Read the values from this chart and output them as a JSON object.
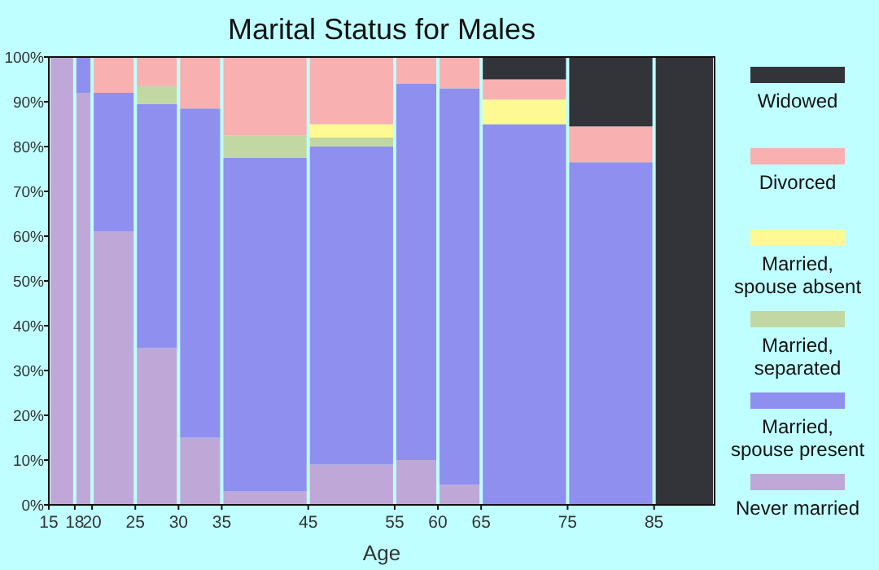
{
  "chart_data": {
    "type": "bar",
    "stacked": true,
    "title": "Marital Status for Males",
    "xlabel": "Age",
    "x": [
      16.5,
      19,
      22.5,
      27.5,
      32.5,
      40,
      50,
      57.5,
      62.5,
      70,
      80,
      88.5
    ],
    "xlim": [
      15,
      92
    ],
    "xticks": [
      15,
      18,
      20,
      25,
      30,
      35,
      45,
      55,
      60,
      65,
      75,
      85
    ],
    "ylim": [
      0,
      100
    ],
    "yticks": [
      {
        "value": 0,
        "label": "0%"
      },
      {
        "value": 10,
        "label": "10%"
      },
      {
        "value": 20,
        "label": "20%"
      },
      {
        "value": 30,
        "label": "30%"
      },
      {
        "value": 40,
        "label": "40%"
      },
      {
        "value": 50,
        "label": "50%"
      },
      {
        "value": 60,
        "label": "60%"
      },
      {
        "value": 70,
        "label": "70%"
      },
      {
        "value": 80,
        "label": "80%"
      },
      {
        "value": 90,
        "label": "90%"
      },
      {
        "value": 100,
        "label": "100%"
      }
    ],
    "legend": "right",
    "series": [
      {
        "name": "Never married",
        "color": "#bfa8d8",
        "values": [
          100,
          92,
          61,
          35,
          15,
          3,
          9,
          10,
          4.5,
          0,
          0,
          0
        ]
      },
      {
        "name": "Married, spouse present",
        "color": "#8f8ff0",
        "values": [
          0,
          8,
          31,
          54.5,
          73.5,
          74.5,
          71,
          84,
          88.5,
          85,
          76.5,
          0
        ]
      },
      {
        "name": "Married, separated",
        "color": "#c2d8a2",
        "values": [
          0,
          0,
          0,
          4,
          0,
          5,
          2,
          0,
          0,
          0,
          0,
          0
        ]
      },
      {
        "name": "Married, spouse absent",
        "color": "#fef993",
        "values": [
          0,
          0,
          0,
          0,
          0,
          0,
          3,
          0,
          0,
          5.5,
          0,
          0
        ]
      },
      {
        "name": "Divorced",
        "color": "#f8b0b0",
        "values": [
          0,
          0,
          8,
          6.5,
          11.5,
          17.5,
          15,
          6,
          7,
          4.5,
          8,
          0
        ]
      },
      {
        "name": "Widowed",
        "color": "#33343a",
        "values": [
          0,
          0,
          0,
          0,
          0,
          0,
          0,
          0,
          0,
          5,
          15.5,
          100
        ]
      }
    ]
  }
}
